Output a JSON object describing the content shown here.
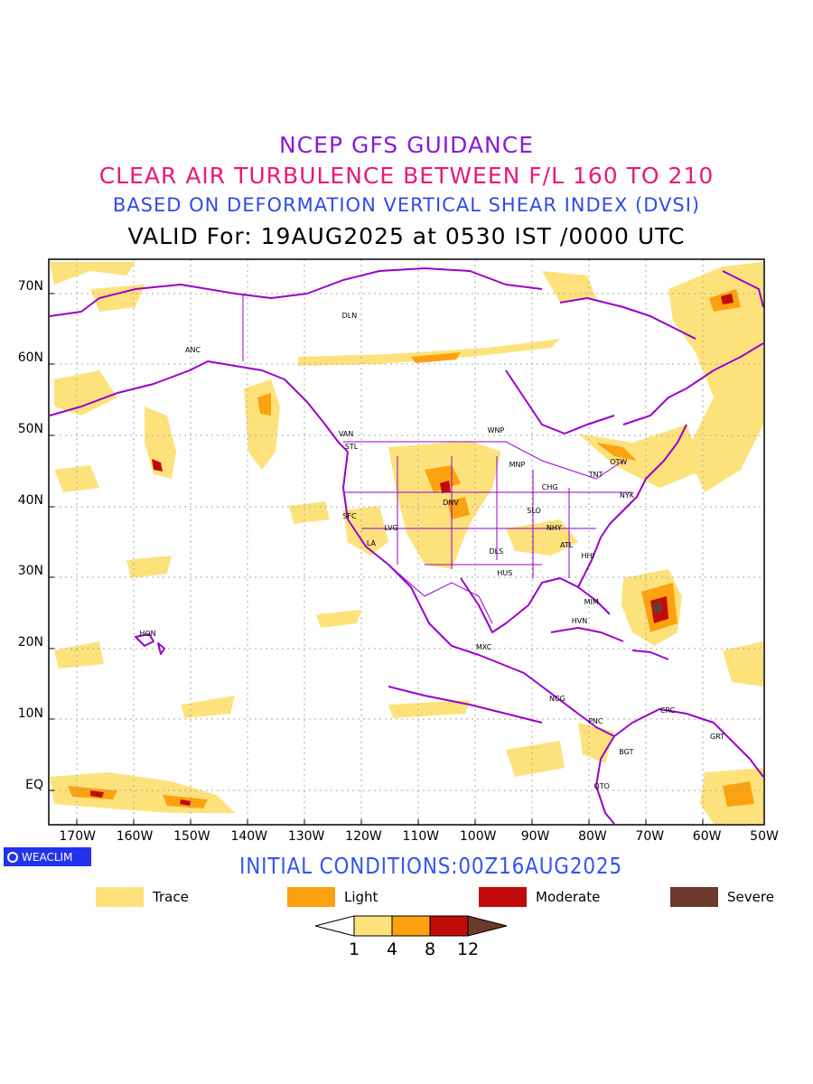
{
  "header": {
    "line1": "NCEP GFS GUIDANCE",
    "line2": "CLEAR AIR TURBULENCE BETWEEN F/L 160 TO 210",
    "line3": "BASED ON DEFORMATION VERTICAL SHEAR INDEX (DVSI)",
    "line4": "VALID For: 19AUG2025 at 0530 IST /0000 UTC"
  },
  "colors": {
    "line1": "#8a1bd9",
    "line2": "#e8197a",
    "line3": "#2f4be6",
    "coast": "#9900cc",
    "trace": "#fde27c",
    "light": "#fca110",
    "moderate": "#c20a0a",
    "severe": "#6b3a2a"
  },
  "map": {
    "lat_labels": [
      "70N",
      "60N",
      "50N",
      "40N",
      "30N",
      "20N",
      "10N",
      "EQ"
    ],
    "lon_labels": [
      "170W",
      "160W",
      "150W",
      "140W",
      "130W",
      "120W",
      "110W",
      "100W",
      "90W",
      "80W",
      "70W",
      "60W",
      "50W"
    ],
    "cities": [
      {
        "name": "ANC",
        "lon": -149.9,
        "lat": 61.2
      },
      {
        "name": "DLN",
        "lon": -122.5,
        "lat": 66.0
      },
      {
        "name": "VAN",
        "lon": -123.1,
        "lat": 49.3
      },
      {
        "name": "STL",
        "lon": -122.0,
        "lat": 47.6
      },
      {
        "name": "WNP",
        "lon": -97.1,
        "lat": 49.9
      },
      {
        "name": "MNP",
        "lon": -93.3,
        "lat": 45.0
      },
      {
        "name": "OTW",
        "lon": -75.7,
        "lat": 45.4
      },
      {
        "name": "TNT",
        "lon": -79.4,
        "lat": 43.7
      },
      {
        "name": "CHG",
        "lon": -87.6,
        "lat": 41.9
      },
      {
        "name": "NYK",
        "lon": -74.0,
        "lat": 40.7
      },
      {
        "name": "DNV",
        "lon": -104.9,
        "lat": 39.7
      },
      {
        "name": "SFC",
        "lon": -122.4,
        "lat": 37.8
      },
      {
        "name": "LVG",
        "lon": -115.1,
        "lat": 36.2
      },
      {
        "name": "SLO",
        "lon": -90.2,
        "lat": 38.6
      },
      {
        "name": "NHY",
        "lon": -86.8,
        "lat": 36.2
      },
      {
        "name": "ATL",
        "lon": -84.4,
        "lat": 33.7
      },
      {
        "name": "LA",
        "lon": -118.2,
        "lat": 34.0
      },
      {
        "name": "DLS",
        "lon": -96.8,
        "lat": 32.8
      },
      {
        "name": "HHI",
        "lon": -80.7,
        "lat": 32.2
      },
      {
        "name": "HUS",
        "lon": -95.4,
        "lat": 29.8
      },
      {
        "name": "MIM",
        "lon": -80.2,
        "lat": 25.8
      },
      {
        "name": "HVN",
        "lon": -82.4,
        "lat": 23.1
      },
      {
        "name": "HON",
        "lon": -157.9,
        "lat": 21.3
      },
      {
        "name": "MXC",
        "lon": -99.1,
        "lat": 19.4
      },
      {
        "name": "NCG",
        "lon": -86.3,
        "lat": 12.1
      },
      {
        "name": "PNC",
        "lon": -79.5,
        "lat": 9.0
      },
      {
        "name": "CRC",
        "lon": -66.9,
        "lat": 10.5
      },
      {
        "name": "GRT",
        "lon": -58.2,
        "lat": 6.8
      },
      {
        "name": "BGT",
        "lon": -74.1,
        "lat": 4.7
      },
      {
        "name": "QTO",
        "lon": -78.5,
        "lat": -0.2
      }
    ]
  },
  "footer": {
    "logo": "WEACLIM",
    "initial_conditions": "INITIAL CONDITIONS:00Z16AUG2025"
  },
  "legend": [
    {
      "label": "Trace",
      "color": "#fde27c"
    },
    {
      "label": "Light",
      "color": "#fca110"
    },
    {
      "label": "Moderate",
      "color": "#c20a0a"
    },
    {
      "label": "Severe",
      "color": "#6b3a2a"
    }
  ],
  "colorbar": {
    "ticks": [
      "1",
      "4",
      "8",
      "12"
    ]
  }
}
